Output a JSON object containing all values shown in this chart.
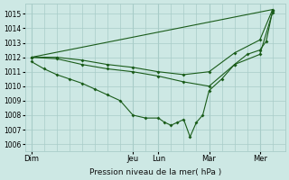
{
  "background_color": "#cde8e4",
  "grid_color": "#a8ccc8",
  "line_color": "#1a5c1a",
  "ylim": [
    1005.5,
    1015.7
  ],
  "yticks": [
    1006,
    1007,
    1008,
    1009,
    1010,
    1011,
    1012,
    1013,
    1014,
    1015
  ],
  "xlabel": "Pression niveau de la mer( hPa )",
  "day_labels": [
    "Dim",
    "Jeu",
    "Lun",
    "Mar",
    "Mer"
  ],
  "day_x": [
    0,
    8,
    10,
    14,
    18
  ],
  "xlim": [
    -0.5,
    20
  ],
  "xticks_minor": [
    0,
    1,
    2,
    3,
    4,
    5,
    6,
    7,
    8,
    9,
    10,
    11,
    12,
    13,
    14,
    15,
    16,
    17,
    18,
    19,
    20
  ],
  "vlines_major": [
    0,
    8,
    10,
    14,
    18
  ],
  "line1_x": [
    0,
    1,
    2,
    3,
    4,
    5,
    6,
    7,
    8,
    9,
    10,
    10.5,
    11,
    11.5,
    12,
    12.5,
    13,
    13.5,
    14,
    15,
    16,
    17,
    18,
    18.5,
    19
  ],
  "line1_y": [
    1011.7,
    1011.2,
    1010.8,
    1010.5,
    1010.2,
    1009.8,
    1009.4,
    1009.0,
    1008.0,
    1007.8,
    1007.8,
    1007.5,
    1007.3,
    1007.5,
    1007.7,
    1006.5,
    1007.5,
    1008.0,
    1009.7,
    1010.5,
    1011.5,
    1012.2,
    1012.5,
    1013.1,
    1015.2
  ],
  "line2_x": [
    0,
    2,
    4,
    6,
    8,
    10,
    12,
    14,
    16,
    18,
    19
  ],
  "line2_y": [
    1012.0,
    1011.9,
    1011.5,
    1011.2,
    1011.0,
    1010.7,
    1010.3,
    1010.0,
    1011.5,
    1012.2,
    1015.1
  ],
  "line3_x": [
    0,
    2,
    4,
    6,
    8,
    10,
    12,
    14,
    16,
    18,
    19
  ],
  "line3_y": [
    1012.0,
    1012.0,
    1011.8,
    1011.5,
    1011.3,
    1011.0,
    1010.8,
    1011.0,
    1012.3,
    1013.2,
    1015.3
  ],
  "line4_x": [
    0,
    19
  ],
  "line4_y": [
    1012.0,
    1015.3
  ]
}
